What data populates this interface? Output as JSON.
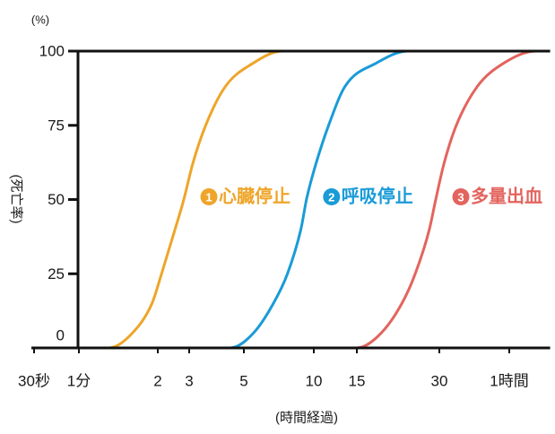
{
  "chart_data": {
    "type": "line",
    "xlabel": "(時間経過)",
    "ylabel": "(死亡率)",
    "y_unit": "(%)",
    "x_scale": "log",
    "xlim": [
      0.5,
      90
    ],
    "ylim": [
      0,
      100
    ],
    "grid": false,
    "legend": "inline",
    "x_ticks": [
      {
        "value": 0.5,
        "label": "30秒"
      },
      {
        "value": 1,
        "label": "1分"
      },
      {
        "value": 2,
        "label": "2"
      },
      {
        "value": 3,
        "label": "3"
      },
      {
        "value": 5,
        "label": "5"
      },
      {
        "value": 10,
        "label": "10"
      },
      {
        "value": 15,
        "label": "15"
      },
      {
        "value": 30,
        "label": "30"
      },
      {
        "value": 60,
        "label": "1時間"
      }
    ],
    "y_ticks": [
      {
        "value": 0,
        "label": "0"
      },
      {
        "value": 25,
        "label": "25"
      },
      {
        "value": 50,
        "label": "50"
      },
      {
        "value": 75,
        "label": "75"
      },
      {
        "value": 100,
        "label": "100"
      }
    ],
    "series": [
      {
        "badge": "1",
        "name": "心臓停止",
        "color": "#EEA52A",
        "x": [
          1.3,
          1.6,
          1.9,
          2.1,
          2.5,
          2.8,
          3.1,
          3.5,
          4.2,
          5.5,
          7.3
        ],
        "y": [
          0,
          5,
          15,
          25,
          40,
          50,
          62,
          75,
          88,
          96,
          100
        ]
      },
      {
        "badge": "2",
        "name": "呼吸停止",
        "color": "#1A9BD7",
        "x": [
          4.4,
          5.5,
          6.7,
          7.7,
          8.8,
          9.3,
          10.2,
          11.5,
          13.4,
          17.7,
          23
        ],
        "y": [
          0,
          5,
          15,
          25,
          40,
          50,
          62,
          75,
          88,
          96,
          100
        ]
      },
      {
        "badge": "3",
        "name": "多量出血",
        "color": "#E3645E",
        "x": [
          15,
          18.4,
          21.9,
          24.5,
          27.6,
          29.1,
          31.4,
          35.5,
          43.6,
          57,
          78
        ],
        "y": [
          0,
          5,
          15,
          25,
          40,
          50,
          62,
          75,
          88,
          96,
          100
        ]
      }
    ]
  }
}
